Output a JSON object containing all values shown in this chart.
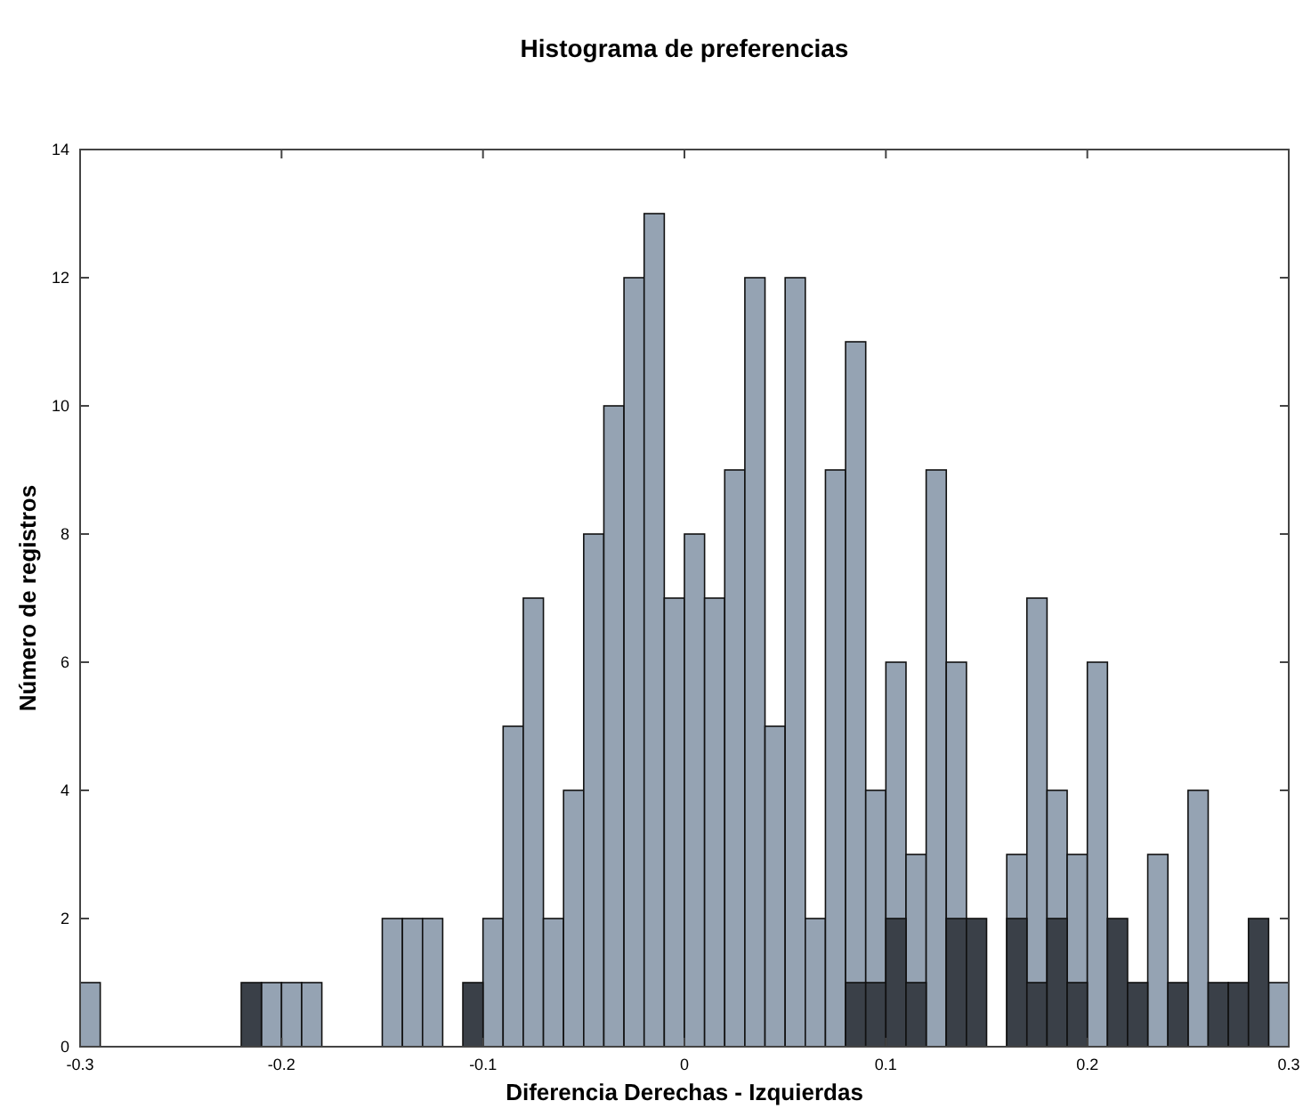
{
  "chart_data": {
    "type": "histogram",
    "title": "Histograma de preferencias",
    "xlabel": "Diferencia Derechas - Izquierdas",
    "ylabel": "Número de registros",
    "bins": [
      -0.3,
      -0.29,
      -0.28,
      -0.27,
      -0.26,
      -0.25,
      -0.24,
      -0.23,
      -0.22,
      -0.21,
      -0.2,
      -0.19,
      -0.18,
      -0.17,
      -0.16,
      -0.15,
      -0.14,
      -0.13,
      -0.12,
      -0.11,
      -0.1,
      -0.09,
      -0.08,
      -0.07,
      -0.06,
      -0.05,
      -0.04,
      -0.03,
      -0.02,
      -0.01,
      0,
      0.01,
      0.02,
      0.03,
      0.04,
      0.05,
      0.06,
      0.07,
      0.08,
      0.09,
      0.1,
      0.11,
      0.12,
      0.13,
      0.14,
      0.15,
      0.16,
      0.17,
      0.18,
      0.19,
      0.2,
      0.21,
      0.22,
      0.23,
      0.24,
      0.25,
      0.26,
      0.27,
      0.28,
      0.29,
      0.3
    ],
    "series": [
      {
        "color": "#95a3b3",
        "values": [
          1,
          0,
          0,
          0,
          0,
          0,
          0,
          0,
          null,
          1,
          1,
          1,
          0,
          0,
          0,
          2,
          2,
          2,
          0,
          null,
          2,
          5,
          7,
          2,
          4,
          8,
          10,
          12,
          13,
          7,
          8,
          7,
          9,
          12,
          5,
          12,
          2,
          9,
          11,
          4,
          6,
          3,
          9,
          6,
          null,
          0,
          3,
          7,
          4,
          3,
          6,
          null,
          null,
          3,
          null,
          4,
          null,
          null,
          null,
          1
        ]
      },
      {
        "color": "#3a4048",
        "values": [
          0,
          0,
          0,
          0,
          0,
          0,
          0,
          0,
          1,
          0,
          0,
          0,
          0,
          0,
          0,
          0,
          0,
          0,
          0,
          1,
          0,
          0,
          0,
          0,
          0,
          0,
          0,
          0,
          0,
          0,
          0,
          0,
          0,
          0,
          0,
          0,
          0,
          0,
          1,
          1,
          2,
          1,
          0,
          2,
          2,
          0,
          2,
          1,
          2,
          1,
          0,
          2,
          1,
          0,
          1,
          0,
          1,
          1,
          2,
          0
        ]
      }
    ],
    "xlim": [
      -0.3,
      0.3
    ],
    "xticks": [
      -0.3,
      -0.2,
      -0.1,
      0,
      0.1,
      0.2,
      0.3
    ],
    "ylim": [
      0,
      14
    ],
    "yticks": [
      0,
      2,
      4,
      6,
      8,
      10,
      12,
      14
    ],
    "grid": false,
    "legend": false
  }
}
